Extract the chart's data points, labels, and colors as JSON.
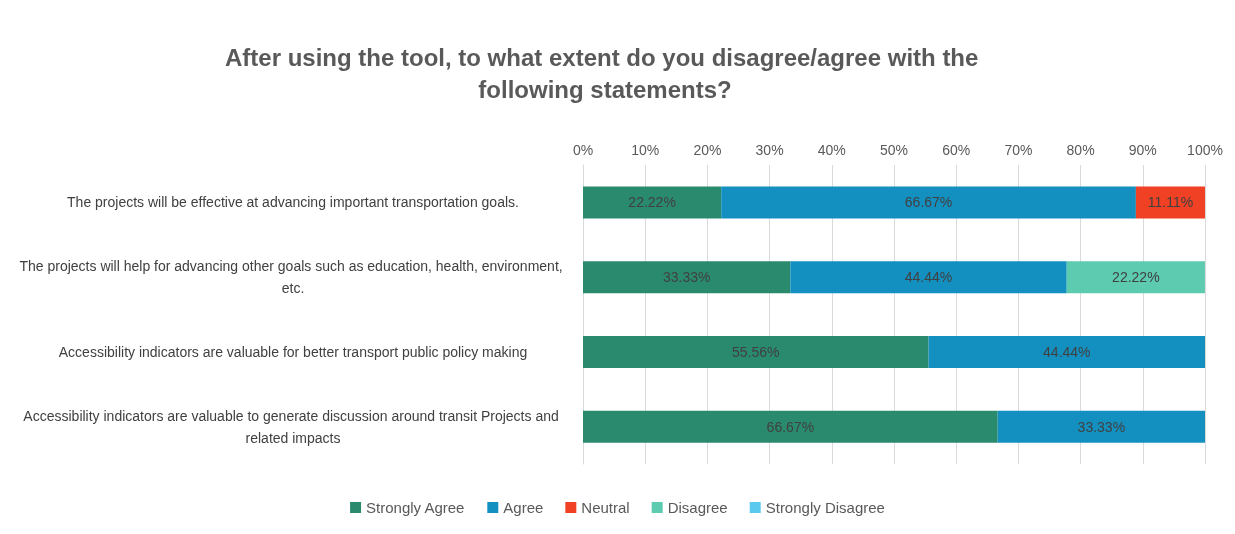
{
  "chart_data": {
    "type": "bar",
    "orientation": "horizontal",
    "stacked": true,
    "title": "After using the tool, to what extent do you disagree/agree with the following statements?",
    "categories": [
      "The projects will be effective at advancing important transportation goals.",
      "The projects will help for advancing other goals such as education, health, environment, etc.",
      "Accessibility indicators are valuable for better transport public policy making",
      "Accessibility indicators are valuable to generate discussion around transit Projects and related impacts"
    ],
    "series": [
      {
        "name": "Strongly Agree",
        "color": "#2a8a6e",
        "values": [
          22.22,
          33.33,
          55.56,
          66.67
        ],
        "value_labels": [
          "22.22%",
          "33.33%",
          "55.56%",
          "66.67%"
        ]
      },
      {
        "name": "Agree",
        "color": "#1390c0",
        "values": [
          66.67,
          44.44,
          44.44,
          33.33
        ],
        "value_labels": [
          "66.67%",
          "44.44%",
          "44.44%",
          "33.33%"
        ]
      },
      {
        "name": "Neutral",
        "color": "#f04124",
        "values": [
          11.11,
          null,
          null,
          null
        ],
        "value_labels": [
          "11.11%",
          null,
          null,
          null
        ]
      },
      {
        "name": "Disagree",
        "color": "#5ccbb0",
        "values": [
          null,
          22.22,
          null,
          null
        ],
        "value_labels": [
          null,
          "22.22%",
          null,
          null
        ]
      },
      {
        "name": "Strongly Disagree",
        "color": "#5bc8ee",
        "values": [
          null,
          null,
          null,
          null
        ]
      }
    ],
    "xlim": [
      0,
      100
    ],
    "xticks": [
      {
        "value": 0,
        "label": "0%"
      },
      {
        "value": 10,
        "label": "10%"
      },
      {
        "value": 20,
        "label": "20%"
      },
      {
        "value": 30,
        "label": "30%"
      },
      {
        "value": 40,
        "label": "40%"
      },
      {
        "value": 50,
        "label": "50%"
      },
      {
        "value": 60,
        "label": "60%"
      },
      {
        "value": 70,
        "label": "70%"
      },
      {
        "value": 80,
        "label": "80%"
      },
      {
        "value": 90,
        "label": "90%"
      },
      {
        "value": 100,
        "label": "100%"
      }
    ],
    "grid": "x",
    "legend": "bottom"
  }
}
